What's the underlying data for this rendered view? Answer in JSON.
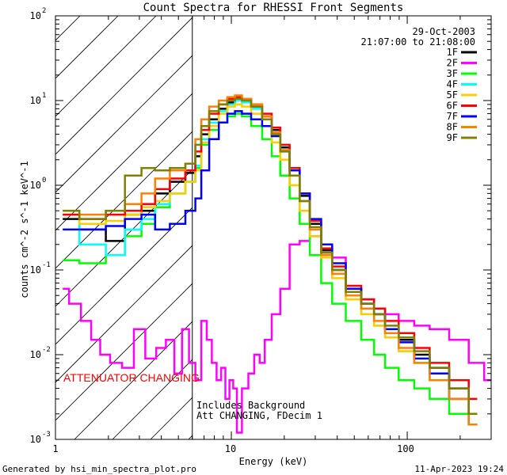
{
  "chart_data": {
    "type": "line",
    "title": "Count Spectra for RHESSI Front Segments",
    "date": "29-Oct-2003",
    "time_range": "21:07:00 to 21:08:00",
    "xlabel": "Energy (keV)",
    "ylabel": "counts cm^-2 s^-1 keV^-1",
    "xscale": "log",
    "yscale": "log",
    "xlim": [
      1,
      300
    ],
    "ylim": [
      0.001,
      100
    ],
    "x_tick_labels": [
      "1",
      "10",
      "100"
    ],
    "y_tick_labels": [
      {
        "base": "10",
        "exp": "-3"
      },
      {
        "base": "10",
        "exp": "-2"
      },
      {
        "base": "10",
        "exp": "-1"
      },
      {
        "base": "10",
        "exp": "0"
      },
      {
        "base": "10",
        "exp": "1"
      },
      {
        "base": "10",
        "exp": "2"
      }
    ],
    "hatched_region": [
      1,
      6
    ],
    "attenuator_label": "ATTENUATOR CHANGING",
    "attenuator_color": "#ff0000",
    "annotation_lines": [
      "Includes Background",
      "Att CHANGING, FDecim 1"
    ],
    "series": [
      {
        "name": "1F",
        "color": "#000000",
        "x": [
          1.1,
          1.7,
          2.2,
          2.8,
          3.4,
          4,
          5,
          6,
          6.5,
          7,
          8,
          9,
          10,
          11,
          12,
          14,
          16,
          18,
          20,
          23,
          26,
          30,
          35,
          40,
          50,
          60,
          70,
          80,
          100,
          120,
          150,
          200,
          250
        ],
        "y": [
          0.4,
          0.3,
          0.22,
          0.45,
          0.5,
          0.8,
          1.1,
          1.4,
          2.2,
          4.0,
          6.0,
          8.0,
          9.5,
          10.5,
          10.0,
          8.5,
          6.5,
          4.5,
          2.8,
          1.5,
          0.75,
          0.35,
          0.17,
          0.1,
          0.06,
          0.04,
          0.03,
          0.02,
          0.015,
          0.01,
          0.007,
          0.004,
          0.002
        ]
      },
      {
        "name": "2F",
        "color": "#ff00ff",
        "x": [
          1.1,
          1.3,
          1.5,
          1.7,
          1.9,
          2.2,
          2.6,
          3,
          3.5,
          4,
          4.5,
          5,
          5.5,
          6,
          6.5,
          7,
          7.5,
          8,
          8.5,
          9,
          9.5,
          10,
          10.5,
          11,
          12,
          13,
          14,
          15,
          16,
          18,
          20,
          23,
          26,
          30,
          35,
          40,
          50,
          60,
          70,
          80,
          100,
          120,
          150,
          200,
          250,
          300
        ],
        "y": [
          0.06,
          0.04,
          0.025,
          0.015,
          0.01,
          0.008,
          0.007,
          0.02,
          0.009,
          0.012,
          0.015,
          0.006,
          0.02,
          0.008,
          0.005,
          0.025,
          0.015,
          0.008,
          0.005,
          0.007,
          0.003,
          0.005,
          0.004,
          0.0012,
          0.004,
          0.006,
          0.01,
          0.008,
          0.015,
          0.03,
          0.06,
          0.2,
          0.22,
          0.25,
          0.2,
          0.14,
          0.06,
          0.045,
          0.035,
          0.03,
          0.025,
          0.022,
          0.02,
          0.015,
          0.008,
          0.005
        ]
      },
      {
        "name": "3F",
        "color": "#00ff00",
        "x": [
          1.1,
          1.7,
          2.2,
          2.8,
          3.4,
          4,
          5,
          6,
          6.5,
          7,
          8,
          9,
          10,
          11,
          12,
          14,
          16,
          18,
          20,
          23,
          26,
          30,
          35,
          40,
          50,
          60,
          70,
          80,
          100,
          120,
          150,
          200,
          250
        ],
        "y": [
          0.13,
          0.12,
          0.15,
          0.25,
          0.35,
          0.55,
          0.8,
          1.1,
          1.6,
          3.0,
          4.5,
          5.5,
          6.5,
          7.0,
          6.5,
          5.0,
          3.5,
          2.2,
          1.3,
          0.7,
          0.35,
          0.15,
          0.07,
          0.04,
          0.025,
          0.015,
          0.01,
          0.007,
          0.005,
          0.004,
          0.003,
          0.002,
          0.0015
        ]
      },
      {
        "name": "4F",
        "color": "#00ffff",
        "x": [
          1.1,
          1.7,
          2.2,
          2.8,
          3.4,
          4,
          5,
          6,
          6.5,
          7,
          8,
          9,
          10,
          11,
          12,
          14,
          16,
          18,
          20,
          23,
          26,
          30,
          35,
          40,
          50,
          60,
          70,
          80,
          100,
          120,
          150,
          200,
          250
        ],
        "y": [
          0.5,
          0.2,
          0.15,
          0.3,
          0.4,
          0.6,
          0.8,
          1.1,
          1.7,
          3.5,
          5.5,
          7.5,
          9.0,
          10.0,
          9.5,
          8.0,
          6.0,
          4.0,
          2.5,
          1.3,
          0.65,
          0.3,
          0.15,
          0.09,
          0.05,
          0.03,
          0.022,
          0.016,
          0.011,
          0.008,
          0.005,
          0.003,
          0.002
        ]
      },
      {
        "name": "5F",
        "color": "#ffcc00",
        "x": [
          1.1,
          1.7,
          2.2,
          2.8,
          3.4,
          4,
          5,
          6,
          6.5,
          7,
          8,
          9,
          10,
          11,
          12,
          14,
          16,
          18,
          20,
          23,
          26,
          30,
          35,
          40,
          50,
          60,
          70,
          80,
          100,
          120,
          150,
          200,
          250
        ],
        "y": [
          0.45,
          0.35,
          0.38,
          0.45,
          0.55,
          0.65,
          0.8,
          1.1,
          1.5,
          3.2,
          5.0,
          7.0,
          8.5,
          9.0,
          8.5,
          7.0,
          5.0,
          3.2,
          2.0,
          1.0,
          0.5,
          0.25,
          0.14,
          0.08,
          0.045,
          0.03,
          0.022,
          0.016,
          0.011,
          0.008,
          0.005,
          0.003,
          0.002
        ]
      },
      {
        "name": "6F",
        "color": "#ff0000",
        "x": [
          1.1,
          1.7,
          2.2,
          2.8,
          3.4,
          4,
          5,
          6,
          6.5,
          7,
          8,
          9,
          10,
          11,
          12,
          14,
          16,
          18,
          20,
          23,
          26,
          30,
          35,
          40,
          50,
          60,
          70,
          80,
          100,
          120,
          150,
          200,
          250
        ],
        "y": [
          0.45,
          0.4,
          0.45,
          0.5,
          0.6,
          0.9,
          1.2,
          1.5,
          2.5,
          4.5,
          7.0,
          9.0,
          10.5,
          11.0,
          10.5,
          9.0,
          7.0,
          4.8,
          3.0,
          1.6,
          0.8,
          0.38,
          0.18,
          0.11,
          0.065,
          0.045,
          0.035,
          0.025,
          0.018,
          0.012,
          0.008,
          0.005,
          0.003
        ]
      },
      {
        "name": "7F",
        "color": "#0000ff",
        "x": [
          1.1,
          1.7,
          2.2,
          2.8,
          3.4,
          4,
          5,
          6,
          6.5,
          7,
          8,
          9,
          10,
          11,
          12,
          14,
          16,
          18,
          20,
          23,
          26,
          30,
          35,
          40,
          50,
          60,
          70,
          80,
          100,
          120,
          150,
          200,
          250
        ],
        "y": [
          0.3,
          0.3,
          0.33,
          0.4,
          0.45,
          0.3,
          0.35,
          0.5,
          0.7,
          1.5,
          3.5,
          5.5,
          7.0,
          7.5,
          7.0,
          6.0,
          5.0,
          3.8,
          2.6,
          1.5,
          0.8,
          0.4,
          0.2,
          0.12,
          0.06,
          0.04,
          0.03,
          0.02,
          0.014,
          0.009,
          0.006,
          0.003,
          0.0015
        ]
      },
      {
        "name": "8F",
        "color": "#ff8000",
        "x": [
          1.1,
          1.7,
          2.2,
          2.8,
          3.4,
          4,
          5,
          6,
          6.5,
          7,
          8,
          9,
          10,
          11,
          12,
          14,
          16,
          18,
          20,
          23,
          26,
          30,
          35,
          40,
          50,
          60,
          70,
          80,
          100,
          120,
          150,
          200,
          250
        ],
        "y": [
          0.5,
          0.45,
          0.5,
          0.6,
          0.8,
          1.2,
          1.5,
          1.8,
          3.5,
          6.0,
          8.5,
          10.0,
          11.0,
          11.5,
          10.5,
          9.0,
          6.5,
          4.2,
          2.6,
          1.3,
          0.65,
          0.3,
          0.15,
          0.09,
          0.05,
          0.035,
          0.025,
          0.018,
          0.012,
          0.008,
          0.005,
          0.003,
          0.0015
        ]
      },
      {
        "name": "9F",
        "color": "#808000",
        "x": [
          1.1,
          1.7,
          2.2,
          2.8,
          3.4,
          4,
          5,
          6,
          6.5,
          7,
          8,
          9,
          10,
          11,
          12,
          14,
          16,
          18,
          20,
          23,
          26,
          30,
          35,
          40,
          50,
          60,
          70,
          80,
          100,
          120,
          150,
          200,
          250
        ],
        "y": [
          0.5,
          0.4,
          0.5,
          1.3,
          1.6,
          1.5,
          1.6,
          1.8,
          3.0,
          5.0,
          7.5,
          9.0,
          10.0,
          10.5,
          10.0,
          8.5,
          6.0,
          4.0,
          2.5,
          1.3,
          0.65,
          0.32,
          0.16,
          0.1,
          0.055,
          0.04,
          0.03,
          0.022,
          0.016,
          0.011,
          0.007,
          0.004,
          0.002
        ]
      }
    ]
  },
  "footer": {
    "generator": "Generated by hsi_min_spectra_plot.pro",
    "timestamp": "11-Apr-2023 19:24"
  }
}
